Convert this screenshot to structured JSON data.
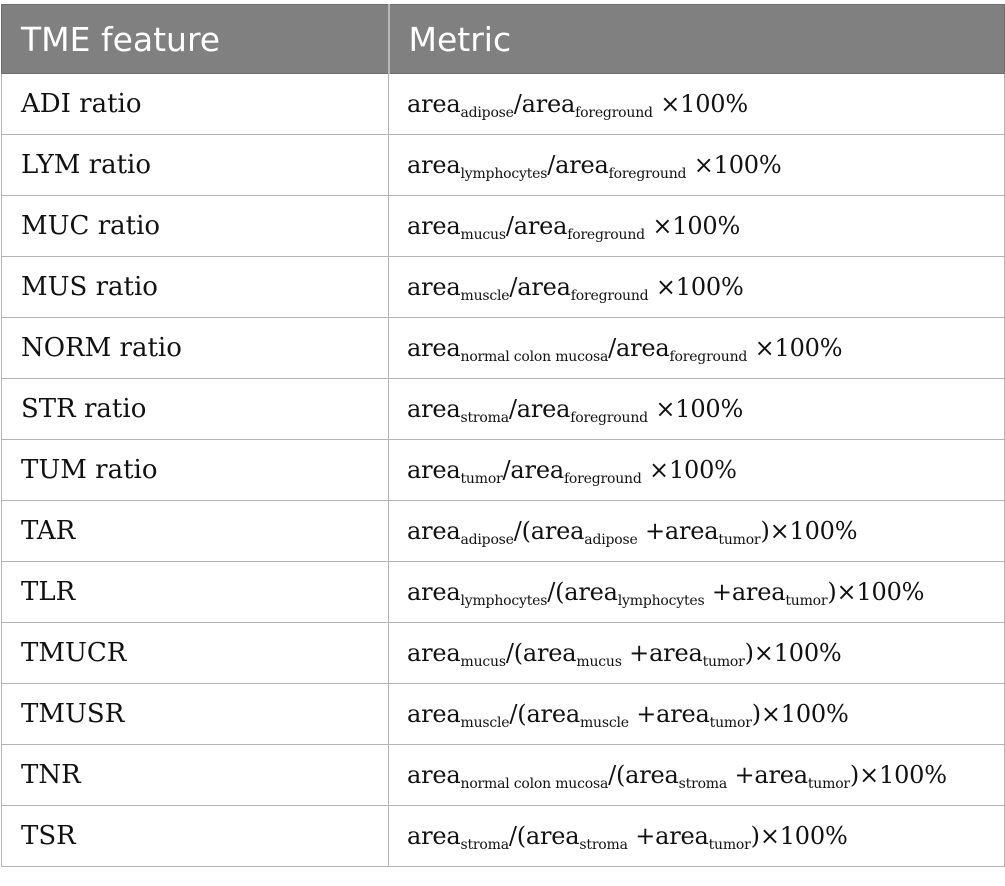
{
  "table": {
    "headers": [
      "TME feature",
      "Metric"
    ],
    "rows": [
      {
        "feature": "ADI ratio",
        "metric": [
          [
            "area",
            0
          ],
          [
            "adipose",
            1
          ],
          [
            "/area",
            0
          ],
          [
            "foreground",
            1
          ],
          [
            " ×100%",
            0
          ]
        ]
      },
      {
        "feature": "LYM ratio",
        "metric": [
          [
            "area",
            0
          ],
          [
            "lymphocytes",
            1
          ],
          [
            "/area",
            0
          ],
          [
            "foreground",
            1
          ],
          [
            " ×100%",
            0
          ]
        ]
      },
      {
        "feature": "MUC ratio",
        "metric": [
          [
            "area",
            0
          ],
          [
            "mucus",
            1
          ],
          [
            "/area",
            0
          ],
          [
            "foreground",
            1
          ],
          [
            " ×100%",
            0
          ]
        ]
      },
      {
        "feature": "MUS ratio",
        "metric": [
          [
            "area",
            0
          ],
          [
            "muscle",
            1
          ],
          [
            "/area",
            0
          ],
          [
            "foreground",
            1
          ],
          [
            " ×100%",
            0
          ]
        ]
      },
      {
        "feature": "NORM ratio",
        "metric": [
          [
            "area",
            0
          ],
          [
            "normal colon mucosa",
            1
          ],
          [
            "/area",
            0
          ],
          [
            "foreground",
            1
          ],
          [
            " ×100%",
            0
          ]
        ]
      },
      {
        "feature": "STR ratio",
        "metric": [
          [
            "area",
            0
          ],
          [
            "stroma",
            1
          ],
          [
            "/area",
            0
          ],
          [
            "foreground",
            1
          ],
          [
            " ×100%",
            0
          ]
        ]
      },
      {
        "feature": "TUM ratio",
        "metric": [
          [
            "area",
            0
          ],
          [
            "tumor",
            1
          ],
          [
            "/area",
            0
          ],
          [
            "foreground",
            1
          ],
          [
            " ×100%",
            0
          ]
        ]
      },
      {
        "feature": "TAR",
        "metric": [
          [
            "area",
            0
          ],
          [
            "adipose",
            1
          ],
          [
            "/(area",
            0
          ],
          [
            "adipose",
            1
          ],
          [
            " +area",
            0
          ],
          [
            "tumor",
            1
          ],
          [
            ")×100%",
            0
          ]
        ]
      },
      {
        "feature": "TLR",
        "metric": [
          [
            "area",
            0
          ],
          [
            "lymphocytes",
            1
          ],
          [
            "/(area",
            0
          ],
          [
            "lymphocytes",
            1
          ],
          [
            " +area",
            0
          ],
          [
            "tumor",
            1
          ],
          [
            ")×100%",
            0
          ]
        ]
      },
      {
        "feature": "TMUCR",
        "metric": [
          [
            "area",
            0
          ],
          [
            "mucus",
            1
          ],
          [
            "/(area",
            0
          ],
          [
            "mucus",
            1
          ],
          [
            " +area",
            0
          ],
          [
            "tumor",
            1
          ],
          [
            ")×100%",
            0
          ]
        ]
      },
      {
        "feature": "TMUSR",
        "metric": [
          [
            "area",
            0
          ],
          [
            "muscle",
            1
          ],
          [
            "/(area",
            0
          ],
          [
            "muscle",
            1
          ],
          [
            " +area",
            0
          ],
          [
            "tumor",
            1
          ],
          [
            ")×100%",
            0
          ]
        ]
      },
      {
        "feature": "TNR",
        "metric": [
          [
            "area",
            0
          ],
          [
            "normal colon mucosa",
            1
          ],
          [
            "/(area",
            0
          ],
          [
            "stroma",
            1
          ],
          [
            " +area",
            0
          ],
          [
            "tumor",
            1
          ],
          [
            ")×100%",
            0
          ]
        ]
      },
      {
        "feature": "TSR",
        "metric": [
          [
            "area",
            0
          ],
          [
            "stroma",
            1
          ],
          [
            "/(area",
            0
          ],
          [
            "stroma",
            1
          ],
          [
            " +area",
            0
          ],
          [
            "tumor",
            1
          ],
          [
            ")×100%",
            0
          ]
        ]
      }
    ]
  }
}
